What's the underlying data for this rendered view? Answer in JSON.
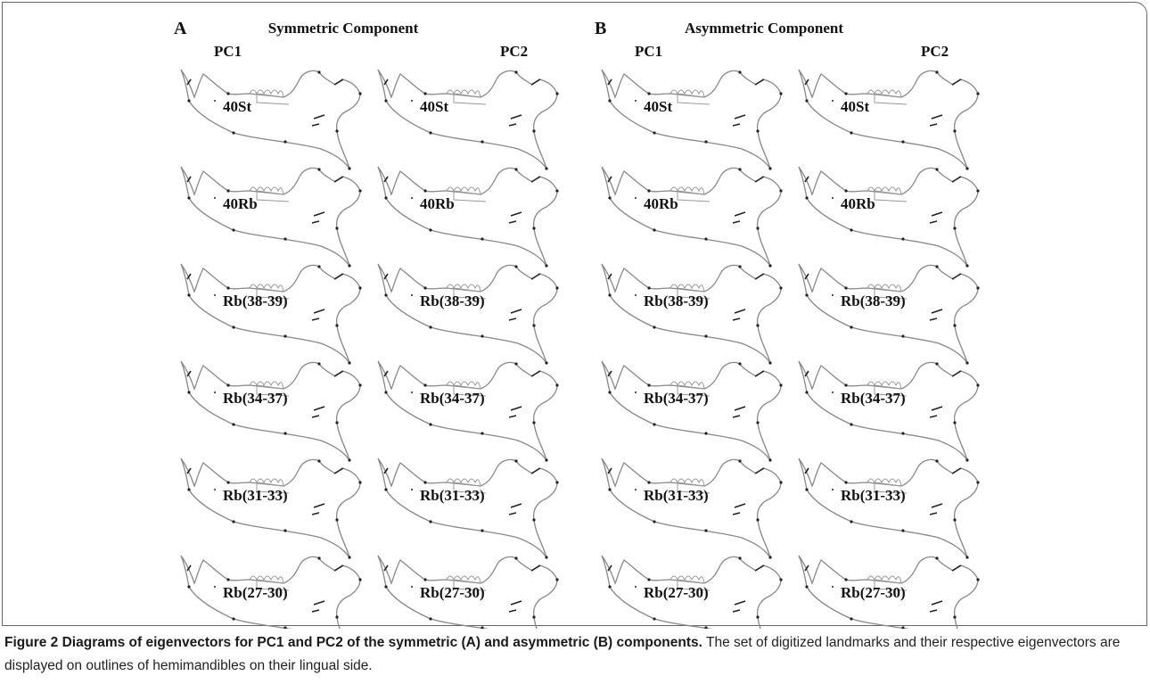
{
  "panels": [
    {
      "letter": "A",
      "title": "Symmetric Component",
      "columns": [
        "PC1",
        "PC2"
      ],
      "rows": [
        "40St",
        "40Rb",
        "Rb(38-39)",
        "Rb(34-37)",
        "Rb(31-33)",
        "Rb(27-30)"
      ]
    },
    {
      "letter": "B",
      "title": "Asymmetric Component",
      "columns": [
        "PC1",
        "PC2"
      ],
      "rows": [
        "40St",
        "40Rb",
        "Rb(38-39)",
        "Rb(34-37)",
        "Rb(31-33)",
        "Rb(27-30)"
      ]
    }
  ],
  "caption": {
    "label": "Figure 2",
    "title": "Diagrams of eigenvectors for PC1 and PC2 of the symmetric (A) and asymmetric (B) components.",
    "text": "The set of digitized landmarks and their respective eigenvectors are displayed on outlines of hemimandibles on their lingual side."
  }
}
